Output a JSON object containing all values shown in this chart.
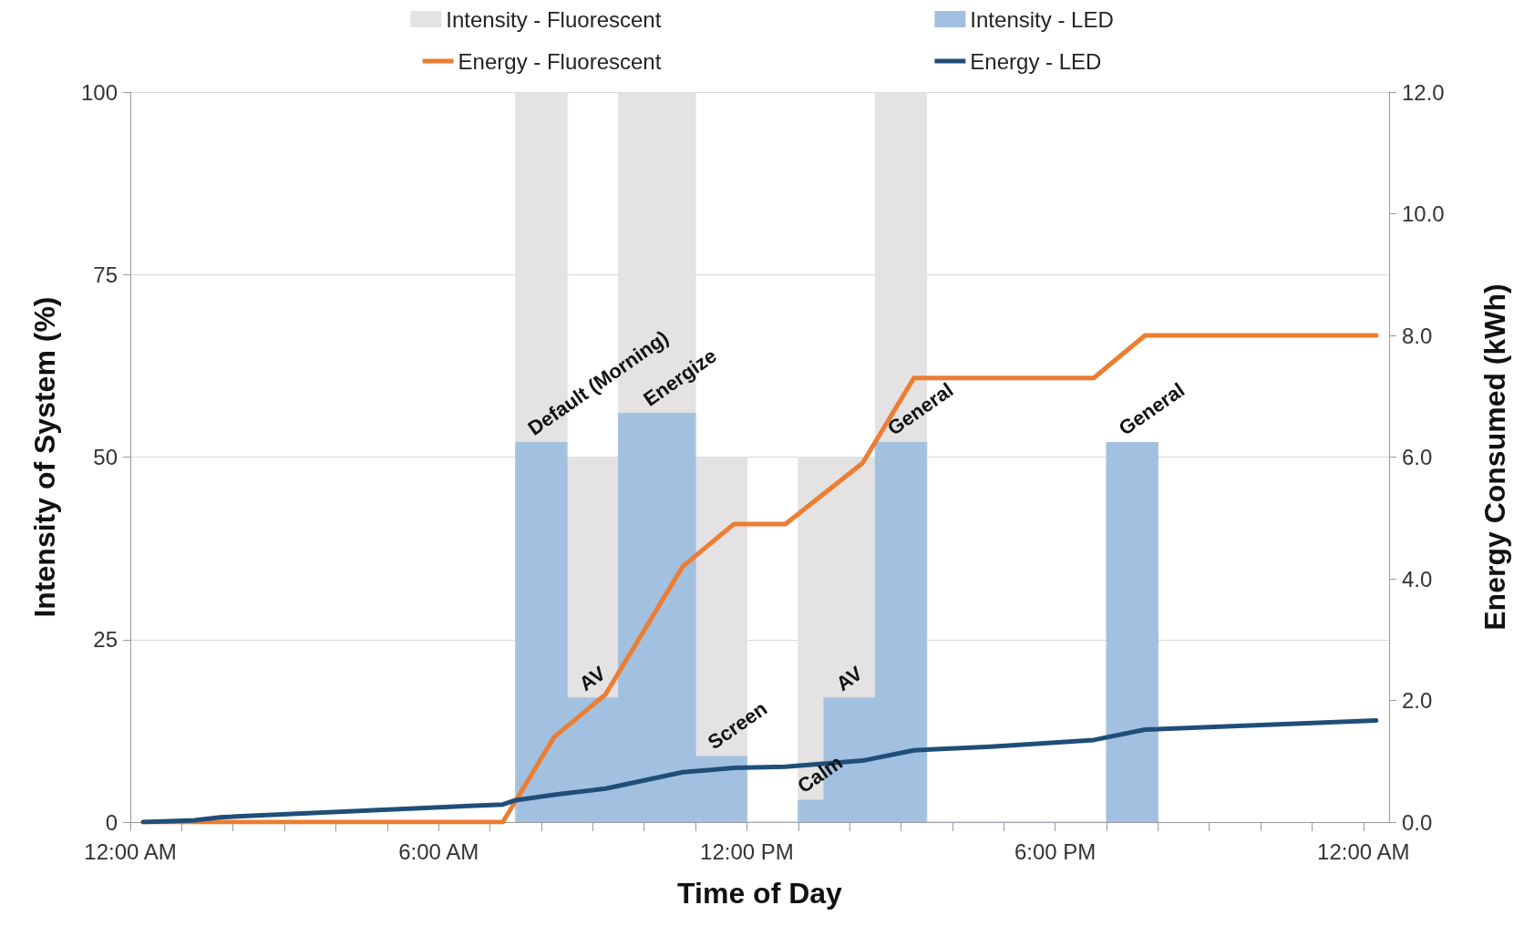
{
  "chart_data": {
    "type": "line",
    "xlabel": "Time of Day",
    "ylabel": "Intensity of System (%)",
    "y2label": "Energy Consumed (kWh)",
    "xlim": [
      0,
      24.5
    ],
    "xticks": [
      {
        "value": 0,
        "label": "12:00 AM"
      },
      {
        "value": 1,
        "label": null
      },
      {
        "value": 2,
        "label": null
      },
      {
        "value": 3,
        "label": null
      },
      {
        "value": 4,
        "label": null
      },
      {
        "value": 5,
        "label": null
      },
      {
        "value": 6,
        "label": "6:00 AM"
      },
      {
        "value": 7,
        "label": null
      },
      {
        "value": 8,
        "label": null
      },
      {
        "value": 9,
        "label": null
      },
      {
        "value": 10,
        "label": null
      },
      {
        "value": 11,
        "label": null
      },
      {
        "value": 12,
        "label": "12:00 PM"
      },
      {
        "value": 13,
        "label": null
      },
      {
        "value": 14,
        "label": null
      },
      {
        "value": 15,
        "label": null
      },
      {
        "value": 16,
        "label": null
      },
      {
        "value": 17,
        "label": null
      },
      {
        "value": 18,
        "label": "6:00 PM"
      },
      {
        "value": 19,
        "label": null
      },
      {
        "value": 20,
        "label": null
      },
      {
        "value": 21,
        "label": null
      },
      {
        "value": 22,
        "label": null
      },
      {
        "value": 23,
        "label": null
      },
      {
        "value": 24,
        "label": "12:00 AM"
      }
    ],
    "ylim": [
      0,
      100
    ],
    "yticks": [
      0,
      25,
      50,
      75,
      100
    ],
    "y2lim": [
      0,
      12
    ],
    "y2ticks": [
      {
        "value": 0,
        "label": "0.0"
      },
      {
        "value": 2,
        "label": "2.0"
      },
      {
        "value": 4,
        "label": "4.0"
      },
      {
        "value": 6,
        "label": "6.0"
      },
      {
        "value": 8,
        "label": "8.0"
      },
      {
        "value": 10,
        "label": "10.0"
      },
      {
        "value": 12,
        "label": "12.0"
      }
    ],
    "grid": "y",
    "legend": "top",
    "marker": "none",
    "series": [
      {
        "name": "Intensity - Fluorescent",
        "type": "area",
        "color": "#e4e2e2",
        "x": [
          7.5,
          7.5,
          8.5,
          8.5,
          9.5,
          9.5,
          11,
          11,
          12,
          12,
          13,
          13,
          14.5,
          14.5,
          15.5,
          15.5
        ],
        "values": [
          0,
          100,
          100,
          50,
          50,
          100,
          100,
          50,
          50,
          0,
          0,
          50,
          50,
          100,
          100,
          0
        ]
      },
      {
        "name": "Intensity - LED",
        "type": "area",
        "color": "#a2c0e0",
        "x": [
          7.5,
          7.5,
          8.5,
          8.5,
          9.5,
          9.5,
          11,
          11,
          12,
          12,
          13,
          13,
          13.5,
          13.5,
          14.5,
          14.5,
          15.5,
          15.5,
          19,
          19,
          20,
          20
        ],
        "values": [
          0,
          52,
          52,
          17,
          17,
          56,
          56,
          9,
          9,
          0,
          0,
          3,
          3,
          17,
          17,
          52,
          52,
          0,
          0,
          52,
          52,
          0
        ]
      },
      {
        "name": "Energy - Fluorescent",
        "axis": "y2",
        "color": "#ed7d31",
        "x": [
          0.25,
          7.25,
          8.25,
          9.25,
          10.75,
          11.75,
          12.75,
          14.25,
          15.25,
          18.75,
          19.75,
          24.25
        ],
        "values": [
          0,
          0,
          1.4,
          2.1,
          4.2,
          4.9,
          4.9,
          5.9,
          7.3,
          7.3,
          8.0,
          8.0
        ]
      },
      {
        "name": "Energy - LED",
        "axis": "y2",
        "color": "#1f4e79",
        "x": [
          0.25,
          1.25,
          1.75,
          7.25,
          7.5,
          8.25,
          9.25,
          10.75,
          11.75,
          12.75,
          14.25,
          15.25,
          16.75,
          18.75,
          19.75,
          24.25
        ],
        "values": [
          0,
          0.03,
          0.08,
          0.29,
          0.36,
          0.45,
          0.55,
          0.82,
          0.89,
          0.91,
          1.01,
          1.18,
          1.24,
          1.35,
          1.52,
          1.67
        ]
      }
    ],
    "annotations": [
      {
        "text": "Default (Morning)",
        "x": 8,
        "y": 52
      },
      {
        "text": "AV",
        "x": 9,
        "y": 17
      },
      {
        "text": "Energize",
        "x": 10.25,
        "y": 56
      },
      {
        "text": "Screen",
        "x": 11.5,
        "y": 9
      },
      {
        "text": "Calm",
        "x": 13.25,
        "y": 3
      },
      {
        "text": "AV",
        "x": 14,
        "y": 17
      },
      {
        "text": "General",
        "x": 15,
        "y": 52
      },
      {
        "text": "General",
        "x": 19.5,
        "y": 52
      }
    ]
  }
}
